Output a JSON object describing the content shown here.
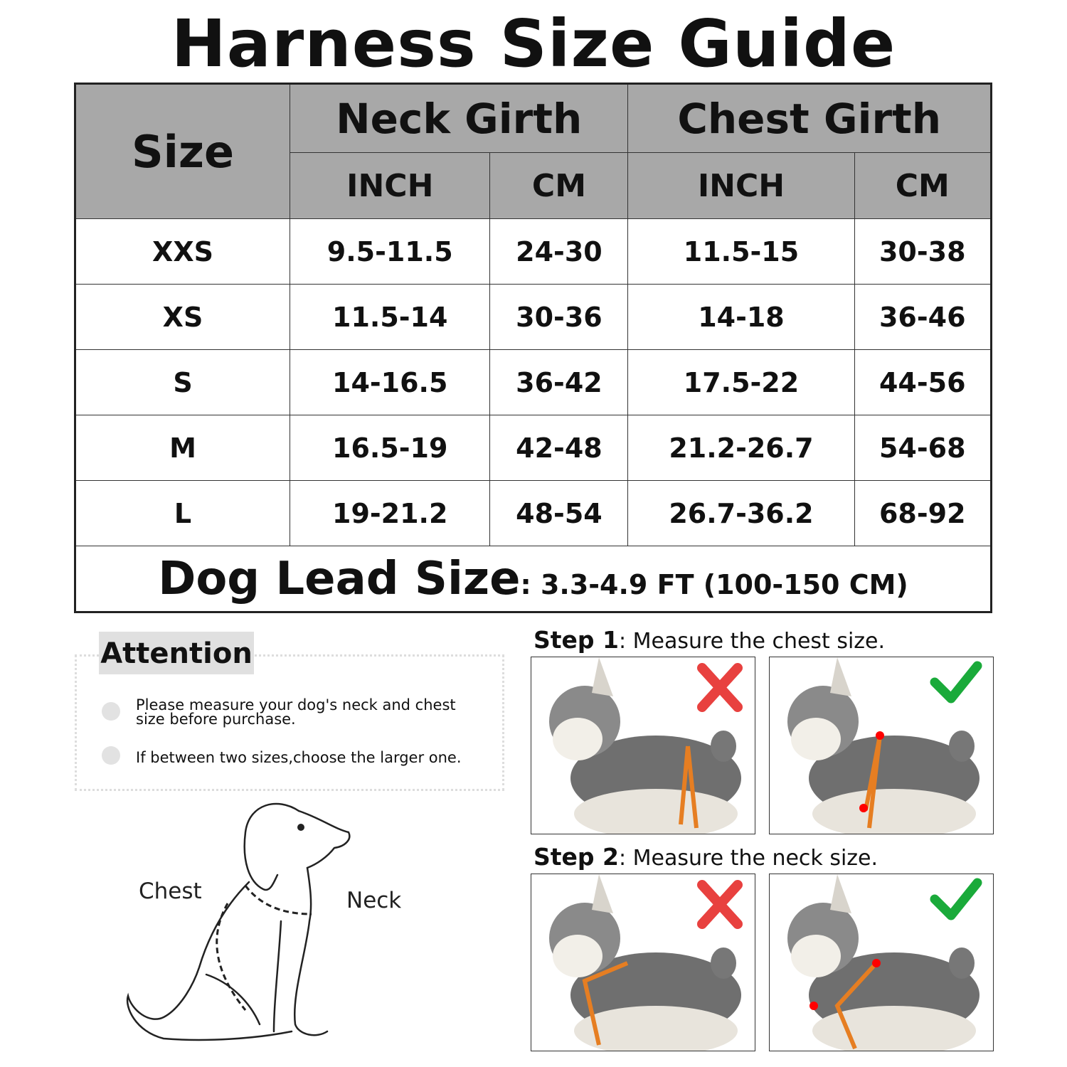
{
  "title": "Harness Size Guide",
  "table": {
    "size_header": "Size",
    "groups": [
      "Neck Girth",
      "Chest Girth"
    ],
    "units": [
      "INCH",
      "CM",
      "INCH",
      "CM"
    ],
    "rows": [
      {
        "size": "XXS",
        "neck_inch": "9.5-11.5",
        "neck_cm": "24-30",
        "chest_inch": "11.5-15",
        "chest_cm": "30-38"
      },
      {
        "size": "XS",
        "neck_inch": "11.5-14",
        "neck_cm": "30-36",
        "chest_inch": "14-18",
        "chest_cm": "36-46"
      },
      {
        "size": "S",
        "neck_inch": "14-16.5",
        "neck_cm": "36-42",
        "chest_inch": "17.5-22",
        "chest_cm": "44-56"
      },
      {
        "size": "M",
        "neck_inch": "16.5-19",
        "neck_cm": "42-48",
        "chest_inch": "21.2-26.7",
        "chest_cm": "54-68"
      },
      {
        "size": "L",
        "neck_inch": "19-21.2",
        "neck_cm": "48-54",
        "chest_inch": "26.7-36.2",
        "chest_cm": "68-92"
      }
    ],
    "lead_label": "Dog Lead Size",
    "lead_value": ": 3.3-4.9 FT (100-150 CM)"
  },
  "attention": {
    "heading": "Attention",
    "items": [
      "Please measure your dog's neck and chest size before purchase.",
      "If between two sizes,choose the larger one."
    ]
  },
  "diagram": {
    "chest_label": "Chest",
    "neck_label": "Neck"
  },
  "steps": [
    {
      "label": "Step 1",
      "text": ": Measure the chest size."
    },
    {
      "label": "Step 2",
      "text": ": Measure the neck size."
    }
  ],
  "colors": {
    "header_bg": "#a8a8a8",
    "wrong": "#e8413f",
    "right": "#1aaa3a",
    "tape": "#e67e22"
  },
  "icons": [
    "cross-icon",
    "check-icon"
  ]
}
